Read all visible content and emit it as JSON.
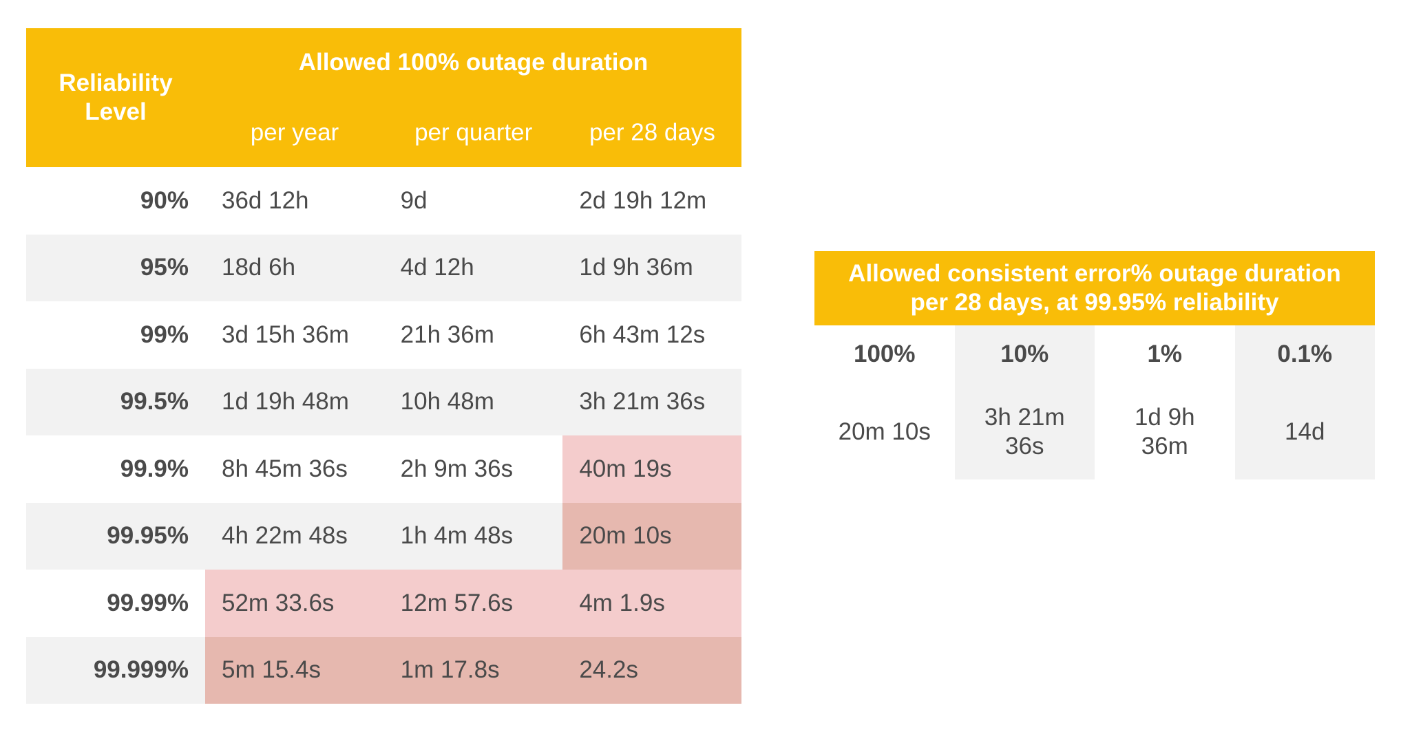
{
  "main_table": {
    "header": {
      "reliability_line1": "Reliability",
      "reliability_line2": "Level",
      "allowed": "Allowed 100% outage duration",
      "per_year": "per year",
      "per_quarter": "per quarter",
      "per_28_days": "per 28 days"
    },
    "rows": [
      {
        "level": "90%",
        "year": "36d 12h",
        "quarter": "9d",
        "days28": "2d 19h 12m"
      },
      {
        "level": "95%",
        "year": "18d 6h",
        "quarter": "4d 12h",
        "days28": "1d 9h 36m"
      },
      {
        "level": "99%",
        "year": "3d 15h 36m",
        "quarter": "21h 36m",
        "days28": "6h 43m 12s"
      },
      {
        "level": "99.5%",
        "year": "1d 19h 48m",
        "quarter": "10h 48m",
        "days28": "3h 21m 36s"
      },
      {
        "level": "99.9%",
        "year": "8h 45m 36s",
        "quarter": "2h 9m 36s",
        "days28": "40m 19s"
      },
      {
        "level": "99.95%",
        "year": "4h 22m 48s",
        "quarter": "1h 4m 48s",
        "days28": "20m 10s"
      },
      {
        "level": "99.99%",
        "year": "52m 33.6s",
        "quarter": "12m 57.6s",
        "days28": "4m 1.9s"
      },
      {
        "level": "99.999%",
        "year": "5m 15.4s",
        "quarter": "1m 17.8s",
        "days28": "24.2s"
      }
    ]
  },
  "error_table": {
    "title_line1": "Allowed consistent error% outage duration",
    "title_line2": "per 28 days, at 99.95% reliability",
    "columns": [
      {
        "pct": "100%",
        "duration": "20m 10s"
      },
      {
        "pct": "10%",
        "duration": "3h 21m\n36s"
      },
      {
        "pct": "1%",
        "duration": "1d 9h\n36m"
      },
      {
        "pct": "0.1%",
        "duration": "14d"
      }
    ]
  },
  "colors": {
    "header_yellow": "#f9bd08",
    "highlight_light": "#f4cccc",
    "highlight_dark": "#e6b8af",
    "row_shade": "#f2f2f2",
    "text": "#4a4a4a"
  }
}
